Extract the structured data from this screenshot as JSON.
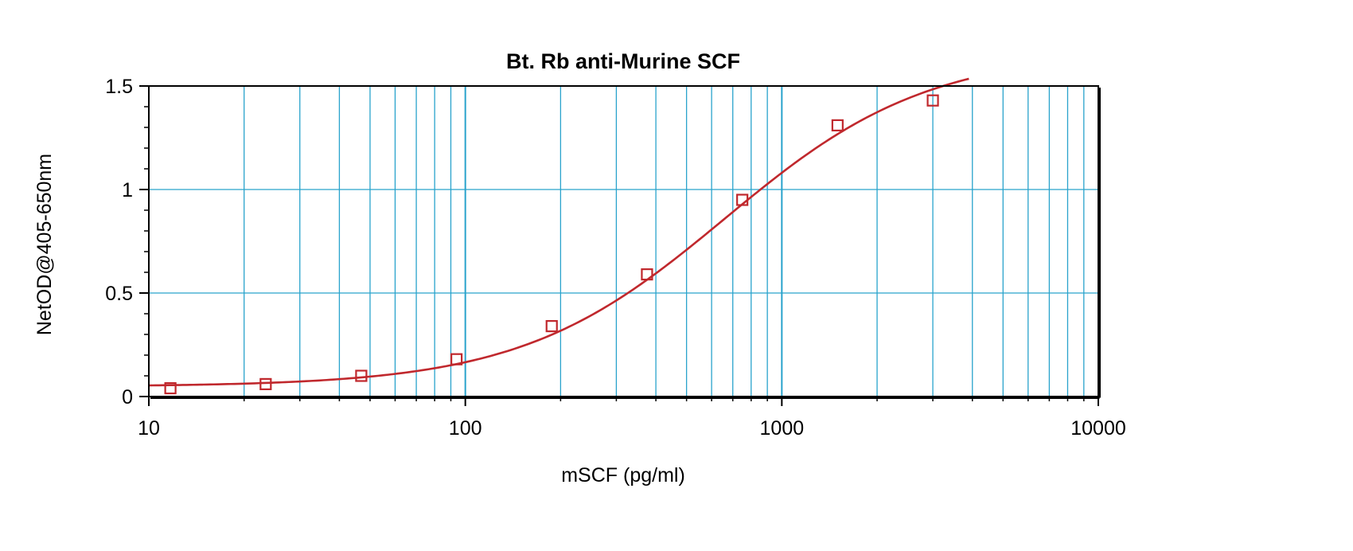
{
  "chart_data": {
    "type": "scatter",
    "title": "Bt. Rb anti-Murine SCF",
    "xlabel": "mSCF (pg/ml)",
    "ylabel": "NetOD@405-650nm",
    "x_scale": "log",
    "xlim": [
      10,
      10000
    ],
    "ylim": [
      0,
      1.5
    ],
    "x_ticks": [
      {
        "value": 10,
        "label": "10"
      },
      {
        "value": 100,
        "label": "100"
      },
      {
        "value": 1000,
        "label": "1000"
      },
      {
        "value": 10000,
        "label": "10000"
      }
    ],
    "y_ticks": [
      {
        "value": 0,
        "label": "0"
      },
      {
        "value": 0.5,
        "label": "0.5"
      },
      {
        "value": 1,
        "label": "1"
      },
      {
        "value": 1.5,
        "label": "1.5"
      }
    ],
    "grid": true,
    "legend": "none",
    "series": [
      {
        "marker": "square-open",
        "color": "#c0282d",
        "x": [
          11.7,
          23.4,
          46.9,
          93.8,
          187.5,
          375,
          750,
          1500,
          3000
        ],
        "y": [
          0.04,
          0.06,
          0.1,
          0.18,
          0.34,
          0.59,
          0.95,
          1.31,
          1.43
        ]
      }
    ],
    "fit_curve": {
      "type": "4PL",
      "color": "#c0282d",
      "bottom": 0.048,
      "top": 1.67,
      "ec50": 660,
      "hill": 1.35,
      "x_range": [
        10,
        3900
      ]
    },
    "colors": {
      "grid": "#29a3cc",
      "series": "#c0282d",
      "axes": "#000000"
    }
  }
}
